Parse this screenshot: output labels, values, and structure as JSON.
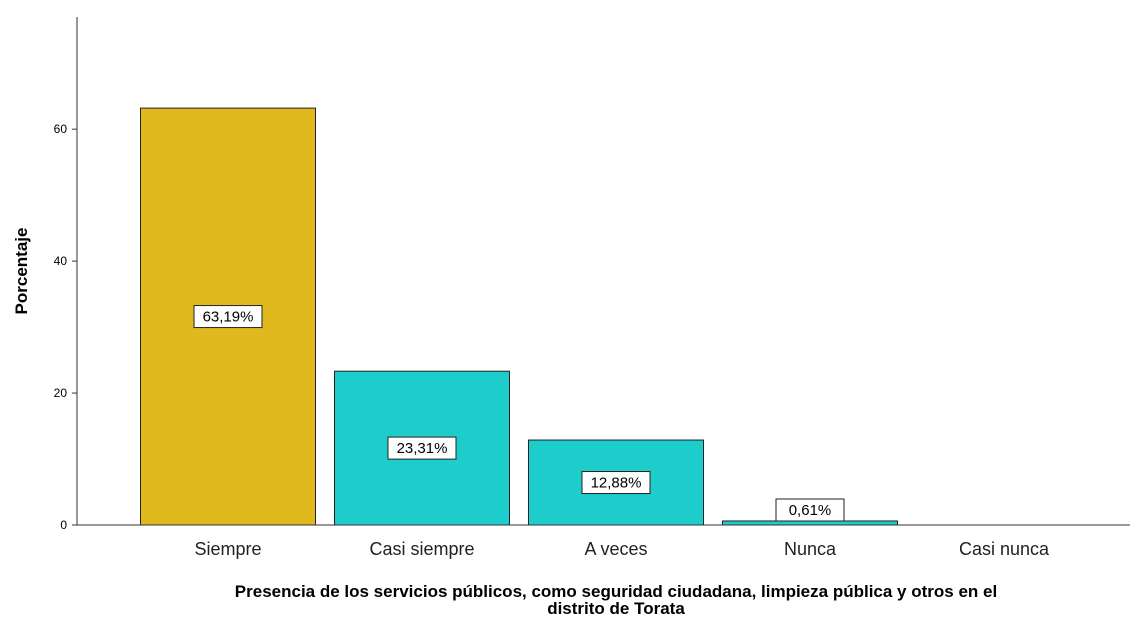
{
  "chart_data": {
    "type": "bar",
    "categories": [
      "Siempre",
      "Casi siempre",
      "A veces",
      "Nunca",
      "Casi nunca"
    ],
    "values": [
      63.19,
      23.31,
      12.88,
      0.61,
      0
    ],
    "data_labels": [
      "63,19%",
      "23,31%",
      "12,88%",
      "0,61%",
      ""
    ],
    "bar_colors": [
      "#E0B91E",
      "#1DCDCC",
      "#1DCDCC",
      "#1DCDCC",
      "#1DCDCC"
    ],
    "ylabel": "Porcentaje",
    "xlabel_lines": [
      "Presencia de los servicios públicos, como seguridad ciudadana, limpieza pública y otros en el",
      "distrito de Torata"
    ],
    "y_ticks": [
      0,
      20,
      40,
      60
    ],
    "ylim": [
      0,
      77
    ],
    "grid": false,
    "legend": "none"
  }
}
